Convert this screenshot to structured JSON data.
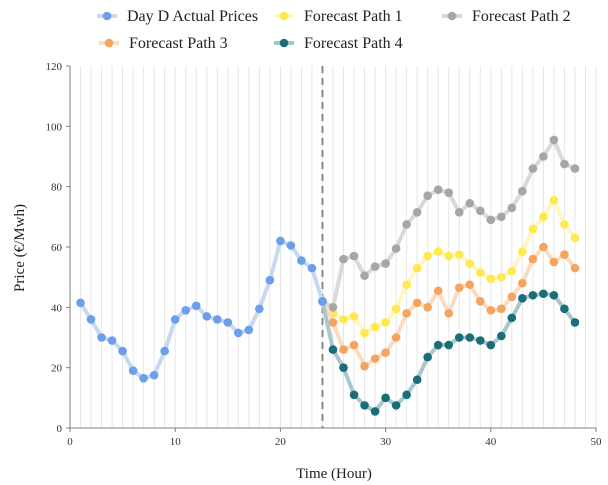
{
  "chart_data": {
    "type": "line",
    "xlabel": "Time (Hour)",
    "ylabel": "Price (€/Mwh)",
    "xlim": [
      0,
      50
    ],
    "ylim": [
      0,
      120
    ],
    "xticks": [
      0,
      10,
      20,
      30,
      40,
      50
    ],
    "yticks": [
      0,
      20,
      40,
      60,
      80,
      100,
      120
    ],
    "vertical_divider_x": 24,
    "grid": "vertical minor lines at each hour",
    "legend_position": "top",
    "series": [
      {
        "name": "Day D Actual Prices",
        "color": "#6d9eeb",
        "line_color": "#c5d9f1",
        "x": [
          1,
          2,
          3,
          4,
          5,
          6,
          7,
          8,
          9,
          10,
          11,
          12,
          13,
          14,
          15,
          16,
          17,
          18,
          19,
          20,
          21,
          22,
          23,
          24
        ],
        "values": [
          41.5,
          36,
          30,
          29,
          25.5,
          19,
          16.5,
          17.5,
          25.5,
          36,
          39,
          40.5,
          37,
          36,
          35,
          31.5,
          32.5,
          39.5,
          49,
          62,
          60.5,
          55.5,
          53,
          42
        ]
      },
      {
        "name": "Forecast Path 1",
        "color": "#ffe94d",
        "line_color": "#fff7c2",
        "x": [
          24,
          25,
          26,
          27,
          28,
          29,
          30,
          31,
          32,
          33,
          34,
          35,
          36,
          37,
          38,
          39,
          40,
          41,
          42,
          43,
          44,
          45,
          46,
          47,
          48
        ],
        "values": [
          42,
          38,
          36,
          37,
          31.5,
          33.5,
          35,
          39.5,
          47.5,
          53,
          57,
          58.5,
          57,
          57.5,
          54.5,
          51.5,
          49.5,
          50,
          52,
          58.5,
          66,
          70,
          75.5,
          67.5,
          63
        ]
      },
      {
        "name": "Forecast Path 2",
        "color": "#a6a6a6",
        "line_color": "#d9d9d9",
        "x": [
          24,
          25,
          26,
          27,
          28,
          29,
          30,
          31,
          32,
          33,
          34,
          35,
          36,
          37,
          38,
          39,
          40,
          41,
          42,
          43,
          44,
          45,
          46,
          47,
          48
        ],
        "values": [
          42,
          40,
          56,
          57,
          50.5,
          53.5,
          54.5,
          59.5,
          67.5,
          71.5,
          77,
          79,
          78,
          71.5,
          74.5,
          72,
          69,
          70,
          73,
          78.5,
          86,
          90,
          95.5,
          87.5,
          86
        ]
      },
      {
        "name": "Forecast Path 3",
        "color": "#f4a460",
        "line_color": "#fbdcc0",
        "x": [
          24,
          25,
          26,
          27,
          28,
          29,
          30,
          31,
          32,
          33,
          34,
          35,
          36,
          37,
          38,
          39,
          40,
          41,
          42,
          43,
          44,
          45,
          46,
          47,
          48
        ],
        "values": [
          42,
          35,
          26,
          27.5,
          20.5,
          23,
          25,
          30,
          38,
          41.5,
          40,
          45.5,
          38,
          46.5,
          47.5,
          42,
          39,
          39.5,
          43.5,
          48,
          56,
          60,
          55,
          57.5,
          53
        ]
      },
      {
        "name": "Forecast Path 4",
        "color": "#1a6e7a",
        "line_color": "#a8c8cc",
        "x": [
          24,
          25,
          26,
          27,
          28,
          29,
          30,
          31,
          32,
          33,
          34,
          35,
          36,
          37,
          38,
          39,
          40,
          41,
          42,
          43,
          44,
          45,
          46,
          47,
          48
        ],
        "values": [
          42,
          26,
          20,
          11,
          7.5,
          5.5,
          10,
          7.5,
          11,
          16,
          23.5,
          27.5,
          27.5,
          30,
          30,
          29,
          27.5,
          30.5,
          36.5,
          43,
          44,
          44.5,
          44,
          39.5,
          35
        ]
      }
    ]
  }
}
